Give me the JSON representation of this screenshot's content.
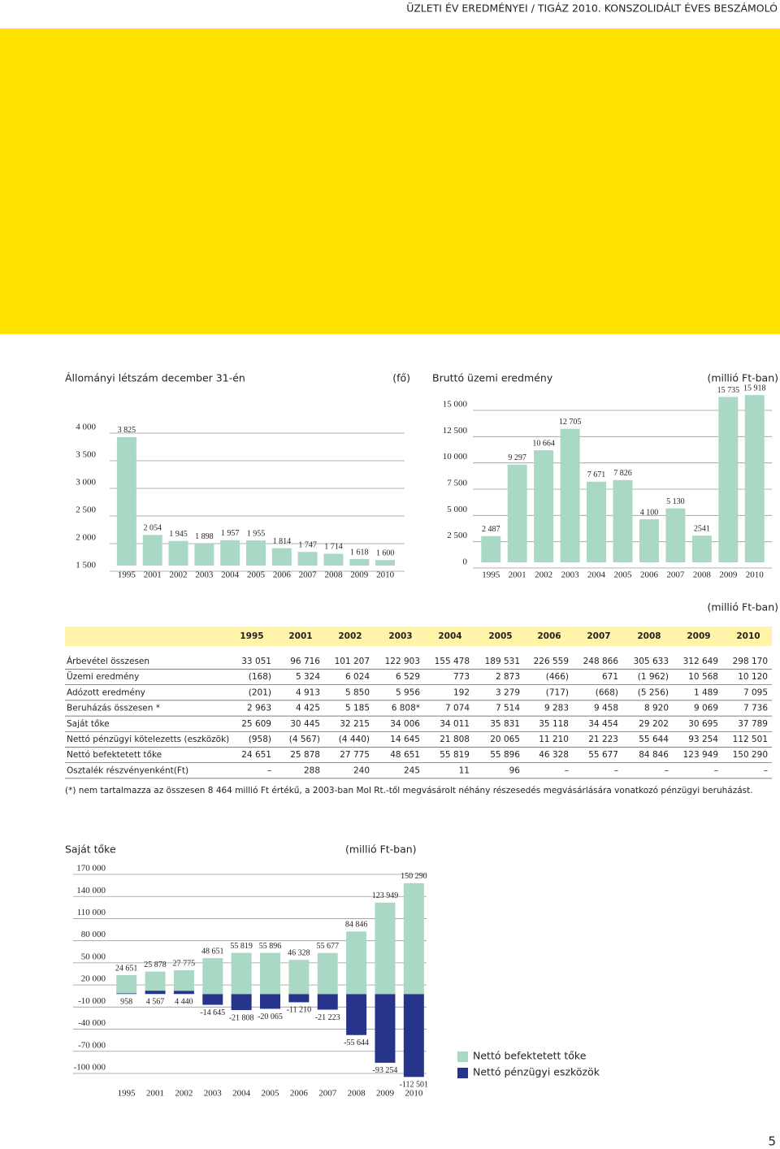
{
  "header": "ÜZLETI ÉV EREDMÉNYEI / TIGÁZ 2010. KONSZOLIDÁLT ÉVES BESZÁMOLÓ",
  "chart_data": [
    {
      "type": "bar",
      "title": "Állományi létszám december 31-én",
      "unit": "(fő)",
      "categories": [
        "1995",
        "2001",
        "2002",
        "2003",
        "2004",
        "2005",
        "2006",
        "2007",
        "2008",
        "2009",
        "2010"
      ],
      "values": [
        3825,
        2054,
        1945,
        1898,
        1957,
        1955,
        1814,
        1747,
        1714,
        1618,
        1600
      ],
      "value_labels": [
        "3 825",
        "2 054",
        "1 945",
        "1 898",
        "1 957",
        "1 955",
        "1 814",
        "1 747",
        "1 714",
        "1 618",
        "1 600"
      ],
      "color": "#a9d9c5",
      "ylim": [
        1500,
        4000
      ],
      "yticks": [
        {
          "value": 1500,
          "label": "1 500"
        },
        {
          "value": 2000,
          "label": "2 000"
        },
        {
          "value": 2500,
          "label": "2 500"
        },
        {
          "value": 3000,
          "label": "3 000"
        },
        {
          "value": 3500,
          "label": "3 500"
        },
        {
          "value": 4000,
          "label": "4 000"
        }
      ],
      "grid": true
    },
    {
      "type": "bar",
      "title": "Bruttó üzemi eredmény",
      "unit": "(millió Ft-ban)",
      "categories": [
        "1995",
        "2001",
        "2002",
        "2003",
        "2004",
        "2005",
        "2006",
        "2007",
        "2008",
        "2009",
        "2010"
      ],
      "values": [
        2487,
        9297,
        10664,
        12705,
        7671,
        7826,
        4100,
        5130,
        2541,
        15735,
        15918
      ],
      "value_labels": [
        "2 487",
        "9 297",
        "10 664",
        "12 705",
        "7 671",
        "7 826",
        "4 100",
        "5 130",
        "2541",
        "15 735",
        "15 918"
      ],
      "color": "#a9d9c5",
      "ylim": [
        0,
        15000
      ],
      "yticks": [
        0,
        {
          "value": 2500,
          "label": "2 500"
        },
        {
          "value": 5000,
          "label": "5 000"
        },
        {
          "value": 7500,
          "label": "7 500"
        },
        {
          "value": 10000,
          "label": "10 000"
        },
        {
          "value": 12500,
          "label": "12 500"
        },
        {
          "value": 15000,
          "label": "15 000"
        }
      ],
      "grid": true
    },
    {
      "type": "stacked_bar",
      "title": "Saját tőke",
      "unit": "(millió Ft-ban)",
      "categories": [
        "1995",
        "2001",
        "2002",
        "2003",
        "2004",
        "2005",
        "2006",
        "2007",
        "2008",
        "2009",
        "2010"
      ],
      "series": [
        {
          "name": "Nettó befektetett tőke",
          "color": "#a9d9c5",
          "values": [
            24651,
            25878,
            27775,
            48651,
            55819,
            55896,
            46328,
            55677,
            84846,
            123949,
            150290
          ],
          "value_labels": [
            "24 651",
            "25 878",
            "27 775",
            "48 651",
            "55 819",
            "55 896",
            "46 328",
            "55 677",
            "84 846",
            "123 949",
            "150 290"
          ]
        },
        {
          "name": "Nettó pénzügyi eszközök",
          "color": "#26348b",
          "values": [
            958,
            4567,
            4440,
            -14645,
            -21808,
            -20065,
            -11210,
            -21223,
            -55644,
            -93254,
            -112501
          ],
          "value_labels": [
            "958",
            "4 567",
            "4 440",
            "-14 645",
            "-21 808",
            "-20 065",
            "-11 210",
            "-21 223",
            "-55 644",
            "-93 254",
            "-112 501"
          ]
        }
      ],
      "ylim": [
        -100000,
        170000
      ],
      "yticks": [
        {
          "value": -100000,
          "label": "-100 000"
        },
        {
          "value": -70000,
          "label": "-70 000"
        },
        {
          "value": -40000,
          "label": "-40 000"
        },
        {
          "value": -10000,
          "label": "-10 000"
        },
        {
          "value": 20000,
          "label": "20 000"
        },
        {
          "value": 50000,
          "label": "50 000"
        },
        {
          "value": 80000,
          "label": "80 000"
        },
        {
          "value": 110000,
          "label": "110 000"
        },
        {
          "value": 140000,
          "label": "140 000"
        },
        {
          "value": 170000,
          "label": "170 000"
        }
      ],
      "grid": true,
      "legend": "lower right"
    }
  ],
  "table": {
    "unit": "(millió Ft-ban)",
    "columns": [
      "1995",
      "2001",
      "2002",
      "2003",
      "2004",
      "2005",
      "2006",
      "2007",
      "2008",
      "2009",
      "2010"
    ],
    "rows": [
      {
        "label": "Árbevétel összesen",
        "cells": [
          "33 051",
          "96 716",
          "101 207",
          "122 903",
          "155 478",
          "189 531",
          "226 559",
          "248 866",
          "305 633",
          "312 649",
          "298 170"
        ]
      },
      {
        "label": "Üzemi eredmény",
        "cells": [
          "(168)",
          "5 324",
          "6 024",
          "6 529",
          "773",
          "2 873",
          "(466)",
          "671",
          "(1 962)",
          "10 568",
          "10 120"
        ]
      },
      {
        "label": "Adózott eredmény",
        "cells": [
          "(201)",
          "4 913",
          "5 850",
          "5 956",
          "192",
          "3 279",
          "(717)",
          "(668)",
          "(5 256)",
          "1 489",
          "7 095"
        ]
      },
      {
        "label": "Beruházás összesen *",
        "cells": [
          "2 963",
          "4 425",
          "5 185",
          "6 808*",
          "7 074",
          "7 514",
          "9 283",
          "9 458",
          "8 920",
          "9 069",
          "7 736"
        ]
      },
      {
        "label": "Saját tőke",
        "cells": [
          "25 609",
          "30 445",
          "32 215",
          "34 006",
          "34 011",
          "35 831",
          "35 118",
          "34 454",
          "29 202",
          "30 695",
          "37 789"
        ]
      },
      {
        "label": "Nettó pénzügyi kötelezetts (eszközök)",
        "cells": [
          "(958)",
          "(4 567)",
          "(4 440)",
          "14 645",
          "21 808",
          "20 065",
          "11 210",
          "21 223",
          "55 644",
          "93 254",
          "112 501"
        ]
      },
      {
        "label": "Nettó befektetett tőke",
        "cells": [
          "24 651",
          "25 878",
          "27 775",
          "48 651",
          "55 819",
          "55 896",
          "46 328",
          "55 677",
          "84 846",
          "123 949",
          "150 290"
        ]
      },
      {
        "label": "Osztalék részvényenként(Ft)",
        "cells": [
          "–",
          "288",
          "240",
          "245",
          "11",
          "96",
          "–",
          "–",
          "–",
          "–",
          "–"
        ]
      }
    ],
    "footnote": "(*) nem tartalmazza az összesen 8 464 millió Ft értékű, a 2003-ban  Mol Rt.-től megvásárolt néhány részesedés megvásárlására vonatkozó pénzügyi beruházást."
  },
  "page_number": "5"
}
